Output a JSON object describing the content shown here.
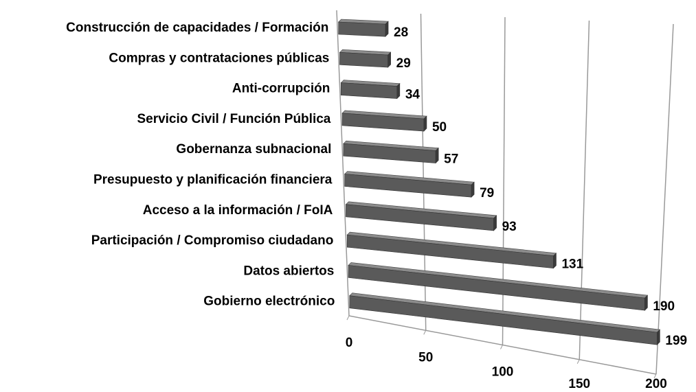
{
  "chart_data": {
    "type": "bar3d",
    "categories": [
      "Construcción de capacidades / Formación",
      "Compras y contrataciones públicas",
      "Anti-corrupción",
      "Servicio Civil / Función Pública",
      "Gobernanza subnacional",
      "Presupuesto y planificación financiera",
      "Acceso a la información / FoIA",
      "Participación / Compromiso ciudadano",
      "Datos abiertos",
      "Gobierno electrónico"
    ],
    "values": [
      28,
      29,
      34,
      50,
      57,
      79,
      93,
      131,
      190,
      199
    ],
    "color": "#5a5a5a",
    "xlim": [
      0,
      200
    ],
    "xticks": [
      0,
      50,
      100,
      150,
      200
    ],
    "grid": true
  }
}
